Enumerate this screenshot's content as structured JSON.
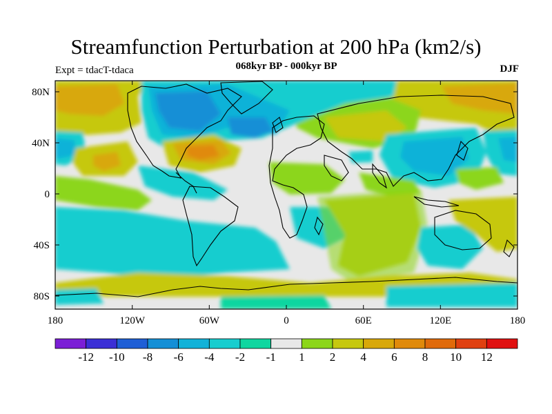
{
  "header": {
    "title": "Streamfunction Perturbation at 200 hPa (km2/s)",
    "subtitle": "068kyr BP - 000kyr BP",
    "experiment": "Expt = tdacT-tdaca",
    "season": "DJF"
  },
  "map": {
    "lat_labels": [
      "80N",
      "40N",
      "0",
      "40S",
      "80S"
    ],
    "lon_labels": [
      "180",
      "120W",
      "60W",
      "0",
      "60E",
      "120E",
      "180"
    ],
    "colors": {
      "neg12": "#7b1fd6",
      "neg10": "#3b2fd6",
      "neg8": "#1f5fd6",
      "neg6": "#148fd6",
      "neg4": "#11b2d8",
      "neg2": "#18cdcf",
      "neg1": "#10d6a0",
      "zero": "#e8e8e8",
      "pos1": "#8cd61a",
      "pos2": "#c6c80f",
      "pos4": "#d8a80a",
      "pos6": "#e08a0a",
      "pos8": "#e06a0a",
      "pos10": "#e04010",
      "pos12": "#e01010"
    }
  },
  "colorbar": {
    "labels": [
      "-12",
      "-10",
      "-8",
      "-6",
      "-4",
      "-2",
      "-1",
      "1",
      "2",
      "4",
      "6",
      "8",
      "10",
      "12"
    ],
    "colors": [
      "#7b1fd6",
      "#3b2fd6",
      "#1f5fd6",
      "#148fd6",
      "#11b2d8",
      "#18cdcf",
      "#10d6a0",
      "#e8e8e8",
      "#8cd61a",
      "#c6c80f",
      "#d8a80a",
      "#e08a0a",
      "#e06a0a",
      "#e04010",
      "#e01010"
    ]
  }
}
